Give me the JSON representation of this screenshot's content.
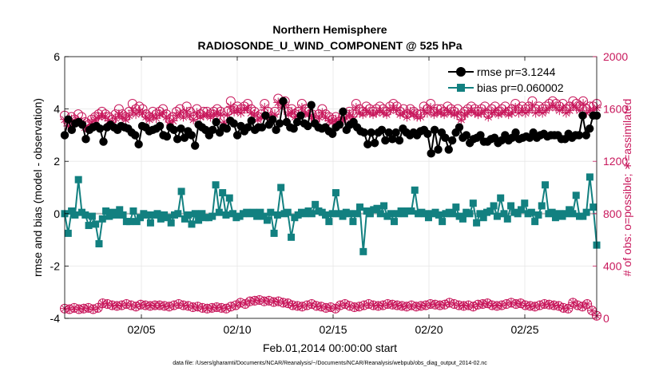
{
  "chart_data": {
    "type": "line",
    "title": "Northern Hemisphere",
    "subtitle": "RADIOSONDE_U_WIND_COMPONENT @ 525 hPa",
    "xlabel": "Feb.01,2014 00:00:00 start",
    "ylabel_left": "rmse and bias (model - observation)",
    "ylabel_right": "# of obs: o=possible; ∗=assimilated",
    "footnote": "data file: /Users/gharamti/Documents/NCAR/Reanalysis/~/Documents/NCAR/Reanalysis/webpub/obs_diag_output_2014-02.nc",
    "xlim": [
      1.0,
      28.75
    ],
    "ylim_left": [
      -4,
      6
    ],
    "ylim_right": [
      0,
      2000
    ],
    "x_ticks": [
      5,
      10,
      15,
      20,
      25
    ],
    "x_tick_labels": [
      "02/05",
      "02/10",
      "02/15",
      "02/20",
      "02/25"
    ],
    "y_left_ticks": [
      -4,
      -2,
      0,
      2,
      4,
      6
    ],
    "y_left_tick_labels": [
      "-4",
      "-2",
      "0",
      "2",
      "4",
      "6"
    ],
    "y_right_ticks": [
      0,
      400,
      800,
      1200,
      1600,
      2000
    ],
    "y_right_tick_labels": [
      "0",
      "400",
      "800",
      "1200",
      "1600",
      "2000"
    ],
    "grid": true,
    "legend_position": "top-right",
    "zero_line": true,
    "colors": {
      "rmse": "#000000",
      "bias": "#128080",
      "obs": "#c8185c",
      "zero": "#b8b8b8",
      "grid": "#e6e6e6"
    },
    "series": [
      {
        "name": "rmse pr=3.1244",
        "axis": "left",
        "marker": "circle",
        "values": [
          3.0,
          3.6,
          3.2,
          3.45,
          3.5,
          3.4,
          2.85,
          3.2,
          3.3,
          3.35,
          3.25,
          2.75,
          3.3,
          3.4,
          3.3,
          3.2,
          3.35,
          3.3,
          3.25,
          3.1,
          3.0,
          2.65,
          3.35,
          3.3,
          3.15,
          3.2,
          3.25,
          3.35,
          3.0,
          2.95,
          3.3,
          3.2,
          2.85,
          3.25,
          2.9,
          3.15,
          3.0,
          2.6,
          3.4,
          3.3,
          3.2,
          3.0,
          3.2,
          3.5,
          3.1,
          3.3,
          3.25,
          3.55,
          3.45,
          3.0,
          3.35,
          3.15,
          3.3,
          3.55,
          3.2,
          3.3,
          3.3,
          3.75,
          3.4,
          3.6,
          3.2,
          3.45,
          4.3,
          3.5,
          3.3,
          3.25,
          3.5,
          3.75,
          3.45,
          3.35,
          4.15,
          3.45,
          3.3,
          3.25,
          3.3,
          3.15,
          3.05,
          3.3,
          3.4,
          3.9,
          3.2,
          3.4,
          3.5,
          3.3,
          3.15,
          3.1,
          2.65,
          3.1,
          2.7,
          3.1,
          3.2,
          2.8,
          3.1,
          2.85,
          3.1,
          2.8,
          3.25,
          3.1,
          3.0,
          3.1,
          3.0,
          3.15,
          3.2,
          3.05,
          2.3,
          3.2,
          2.45,
          3.1,
          2.9,
          2.45,
          2.8,
          3.1,
          3.3,
          2.9,
          3.0,
          2.7,
          2.85,
          2.9,
          3.0,
          2.75,
          2.75,
          2.85,
          2.9,
          2.7,
          2.8,
          3.0,
          2.8,
          2.9,
          3.1,
          2.85,
          2.9,
          2.95,
          2.9,
          3.1,
          2.9,
          3.0,
          3.05,
          2.95,
          3.0,
          3.0,
          3.0,
          2.85,
          2.85,
          3.05,
          2.9,
          3.0,
          3.0,
          3.75,
          3.0,
          3.25,
          3.75,
          3.75
        ]
      },
      {
        "name": "bias pr=0.060002",
        "axis": "left",
        "marker": "square",
        "values": [
          0.0,
          -0.75,
          0.1,
          -0.05,
          1.3,
          0.05,
          -0.05,
          -0.45,
          -0.1,
          -0.4,
          -1.15,
          -0.2,
          0.1,
          -0.1,
          0.05,
          -0.05,
          0.15,
          -0.05,
          -0.3,
          -0.3,
          0.1,
          -0.3,
          -0.15,
          0.0,
          -0.05,
          -0.35,
          -0.05,
          0.0,
          -0.2,
          -0.05,
          -0.15,
          -0.35,
          -0.05,
          0.0,
          0.85,
          -0.2,
          -0.05,
          -0.4,
          0.0,
          -0.25,
          0.0,
          -0.15,
          -0.15,
          -0.1,
          1.1,
          0.05,
          0.8,
          -0.05,
          0.6,
          0.0,
          -0.15,
          -0.1,
          0.0,
          0.05,
          0.0,
          0.05,
          -0.1,
          0.05,
          -0.1,
          -0.25,
          0.05,
          -0.75,
          -0.05,
          1.0,
          0.0,
          0.05,
          -0.9,
          -0.15,
          -0.05,
          0.05,
          0.0,
          0.1,
          0.0,
          0.35,
          0.1,
          0.05,
          -0.05,
          -0.3,
          0.0,
          0.8,
          0.0,
          -0.1,
          0.05,
          0.0,
          -0.3,
          0.0,
          0.25,
          -1.45,
          0.1,
          0.0,
          0.15,
          0.2,
          0.0,
          0.3,
          -0.1,
          0.0,
          -0.3,
          0.0,
          0.1,
          0.0,
          0.1,
          0.1,
          0.9,
          0.0,
          0.05,
          0.0,
          -0.15,
          0.0,
          0.05,
          -0.05,
          -0.3,
          0.0,
          0.05,
          0.0,
          0.25,
          -0.1,
          -0.2,
          0.05,
          0.0,
          0.4,
          -0.35,
          0.0,
          -0.15,
          0.05,
          0.1,
          0.3,
          -0.1,
          0.6,
          0.0,
          -0.2,
          0.3,
          0.05,
          0.0,
          0.15,
          0.4,
          0.0,
          0.05,
          -0.3,
          -0.05,
          0.3,
          1.1,
          0.0,
          0.05,
          -0.15,
          0.0,
          -0.1,
          0.0,
          0.15,
          0.0,
          0.7,
          -0.1,
          -0.1,
          0.05,
          1.4,
          0.25,
          -1.2
        ]
      },
      {
        "name": "obs possible",
        "axis": "right",
        "marker": "circle-open",
        "values": [
          1550,
          1500,
          1540,
          1520,
          1560,
          1540,
          1500,
          1480,
          1520,
          1540,
          1560,
          1580,
          1560,
          1540,
          1520,
          1560,
          1600,
          1560,
          1540,
          1580,
          1640,
          1600,
          1620,
          1600,
          1560,
          1540,
          1580,
          1560,
          1580,
          1600,
          1560,
          1520,
          1540,
          1580,
          1600,
          1560,
          1620,
          1580,
          1540,
          1600,
          1560,
          1580,
          1580,
          1560,
          1580,
          1600,
          1580,
          1520,
          1580,
          1660,
          1600,
          1620,
          1600,
          1620,
          1640,
          1600,
          1580,
          1540,
          1560,
          1640,
          1580,
          1540,
          1580,
          1680,
          1640,
          1660,
          1580,
          1600,
          1560,
          1580,
          1640,
          1600,
          1580,
          1560,
          1520,
          1560,
          1600,
          1560,
          1540,
          1520,
          1540,
          1500,
          1540,
          1560,
          1580,
          1560,
          1640,
          1600,
          1580,
          1620,
          1600,
          1580,
          1600,
          1620,
          1600,
          1580,
          1620,
          1640,
          1620,
          1580,
          1600,
          1560,
          1600,
          1580,
          1560,
          1560,
          1620,
          1600,
          1640,
          1580,
          1600,
          1600,
          1580,
          1620,
          1600,
          1580,
          1600,
          1540,
          1580,
          1600,
          1620,
          1600,
          1580,
          1600,
          1620,
          1560,
          1600,
          1620,
          1580,
          1600,
          1620,
          1580,
          1600,
          1640,
          1600,
          1620,
          1600,
          1620,
          1660,
          1600,
          1620,
          1600,
          1620,
          1640,
          1660,
          1640,
          1620,
          1640,
          1600,
          1620,
          1660,
          1640,
          1620,
          1660,
          1600,
          1620,
          1620,
          1640
        ]
      },
      {
        "name": "obs assimilated",
        "axis": "right",
        "marker": "asterisk",
        "values": [
          1520,
          1470,
          1520,
          1500,
          1510,
          1500,
          1460,
          1450,
          1500,
          1520,
          1540,
          1550,
          1540,
          1510,
          1500,
          1530,
          1560,
          1540,
          1520,
          1550,
          1590,
          1560,
          1580,
          1570,
          1540,
          1520,
          1550,
          1530,
          1560,
          1570,
          1540,
          1500,
          1510,
          1550,
          1570,
          1540,
          1580,
          1550,
          1520,
          1570,
          1540,
          1550,
          1560,
          1540,
          1560,
          1570,
          1560,
          1500,
          1560,
          1620,
          1580,
          1590,
          1570,
          1600,
          1610,
          1570,
          1560,
          1520,
          1540,
          1610,
          1560,
          1520,
          1560,
          1650,
          1610,
          1630,
          1560,
          1580,
          1540,
          1560,
          1610,
          1570,
          1560,
          1540,
          1500,
          1540,
          1570,
          1540,
          1510,
          1500,
          1520,
          1480,
          1520,
          1530,
          1560,
          1540,
          1610,
          1570,
          1560,
          1590,
          1570,
          1560,
          1570,
          1590,
          1570,
          1560,
          1590,
          1610,
          1590,
          1560,
          1570,
          1540,
          1580,
          1560,
          1540,
          1540,
          1590,
          1570,
          1610,
          1560,
          1580,
          1570,
          1560,
          1590,
          1570,
          1560,
          1570,
          1520,
          1560,
          1570,
          1590,
          1570,
          1560,
          1570,
          1590,
          1540,
          1570,
          1590,
          1560,
          1570,
          1590,
          1560,
          1570,
          1610,
          1570,
          1590,
          1570,
          1590,
          1630,
          1570,
          1590,
          1570,
          1590,
          1610,
          1630,
          1610,
          1590,
          1610,
          1570,
          1590,
          1630,
          1610,
          1590,
          1640,
          1570,
          1590,
          1590,
          1610
        ]
      },
      {
        "name": "obs possible (bottom)",
        "axis": "right",
        "marker": "circle-open",
        "values": [
          75,
          70,
          80,
          70,
          75,
          80,
          70,
          80,
          115,
          110,
          100,
          95,
          100,
          110,
          100,
          90,
          105,
          100,
          95,
          100,
          100,
          95,
          90,
          100,
          110,
          100,
          95,
          85,
          90,
          80,
          75,
          80,
          85,
          80,
          75,
          90,
          100,
          120,
          110,
          130,
          135,
          140,
          130,
          135,
          125,
          130,
          120,
          115,
          100,
          95,
          90,
          100,
          110,
          95,
          90,
          80,
          85,
          75,
          100,
          110,
          95,
          85,
          90,
          100,
          110,
          100,
          95,
          100,
          110,
          105,
          100,
          95,
          90,
          100,
          90,
          95,
          100,
          110,
          105,
          100,
          105,
          120,
          110,
          100,
          95,
          100,
          90,
          105,
          110,
          115,
          100,
          95,
          100,
          110,
          120,
          110,
          115,
          100,
          95,
          90,
          100,
          110,
          105,
          100,
          95,
          80,
          75,
          120,
          100,
          90,
          110,
          60,
          20
        ]
      },
      {
        "name": "obs assimilated (bottom)",
        "axis": "right",
        "marker": "asterisk",
        "values": [
          75,
          70,
          80,
          70,
          75,
          80,
          70,
          80,
          115,
          110,
          100,
          95,
          100,
          110,
          100,
          90,
          105,
          100,
          95,
          100,
          100,
          95,
          90,
          100,
          110,
          100,
          95,
          85,
          90,
          80,
          75,
          80,
          85,
          80,
          75,
          90,
          100,
          120,
          110,
          130,
          135,
          140,
          130,
          135,
          125,
          130,
          120,
          115,
          100,
          95,
          90,
          100,
          110,
          95,
          90,
          80,
          85,
          75,
          100,
          110,
          95,
          85,
          90,
          100,
          110,
          100,
          95,
          100,
          110,
          105,
          100,
          95,
          90,
          100,
          90,
          95,
          100,
          110,
          105,
          100,
          105,
          120,
          110,
          100,
          95,
          100,
          90,
          105,
          110,
          115,
          100,
          95,
          100,
          110,
          120,
          110,
          115,
          100,
          95,
          90,
          100,
          110,
          105,
          100,
          95,
          80,
          75,
          120,
          100,
          90,
          110,
          60,
          20
        ]
      }
    ]
  }
}
